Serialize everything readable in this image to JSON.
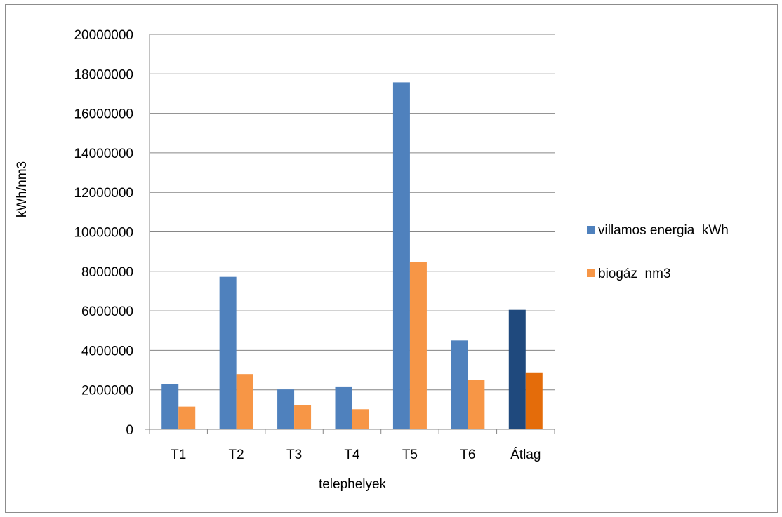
{
  "chart_data": {
    "type": "bar",
    "title": "",
    "xlabel": "telephelyek",
    "ylabel": "kWh/nm3",
    "ylim": [
      0,
      20000000
    ],
    "ytick_step": 2000000,
    "yticks": [
      "0",
      "2000000",
      "4000000",
      "6000000",
      "8000000",
      "10000000",
      "12000000",
      "14000000",
      "16000000",
      "18000000",
      "20000000"
    ],
    "categories": [
      "T1",
      "T2",
      "T3",
      "T4",
      "T5",
      "T6",
      "Átlag"
    ],
    "series": [
      {
        "name": "villamos energia  kWh",
        "color": "#4f81bd",
        "highlight_color": "#1f497d",
        "values": [
          2300000,
          7720000,
          2020000,
          2170000,
          17570000,
          4500000,
          6050000
        ]
      },
      {
        "name": "biogáz  nm3",
        "color": "#f79646",
        "highlight_color": "#e46c0a",
        "values": [
          1150000,
          2800000,
          1220000,
          1020000,
          8470000,
          2500000,
          2850000
        ]
      }
    ],
    "highlight_category": "Átlag",
    "grid": true,
    "legend": "right"
  }
}
